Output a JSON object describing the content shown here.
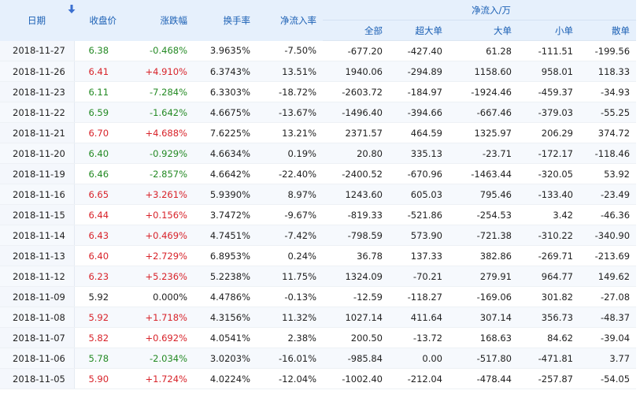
{
  "headers": {
    "date": "日期",
    "close": "收盘价",
    "change": "涨跌幅",
    "turnover": "换手率",
    "net_rate": "净流入率",
    "net_group": "净流入/万",
    "total": "全部",
    "super": "超大单",
    "large": "大单",
    "small": "小单",
    "retail": "散单"
  },
  "colors": {
    "up": "#d8232a",
    "down": "#248a24",
    "header_bg": "#e6f0fc",
    "header_text": "#1a5fb4"
  },
  "sort_icon": "arrow-down-icon",
  "rows": [
    {
      "date": "2018-11-27",
      "close": "6.38",
      "change": "-0.468%",
      "turnover": "3.9635%",
      "net_rate": "-7.50%",
      "total": "-677.20",
      "super": "-427.40",
      "large": "61.28",
      "small": "-111.51",
      "retail": "-199.56",
      "trend": "down"
    },
    {
      "date": "2018-11-26",
      "close": "6.41",
      "change": "+4.910%",
      "turnover": "6.3743%",
      "net_rate": "13.51%",
      "total": "1940.06",
      "super": "-294.89",
      "large": "1158.60",
      "small": "958.01",
      "retail": "118.33",
      "trend": "up"
    },
    {
      "date": "2018-11-23",
      "close": "6.11",
      "change": "-7.284%",
      "turnover": "6.3303%",
      "net_rate": "-18.72%",
      "total": "-2603.72",
      "super": "-184.97",
      "large": "-1924.46",
      "small": "-459.37",
      "retail": "-34.93",
      "trend": "down"
    },
    {
      "date": "2018-11-22",
      "close": "6.59",
      "change": "-1.642%",
      "turnover": "4.6675%",
      "net_rate": "-13.67%",
      "total": "-1496.40",
      "super": "-394.66",
      "large": "-667.46",
      "small": "-379.03",
      "retail": "-55.25",
      "trend": "down"
    },
    {
      "date": "2018-11-21",
      "close": "6.70",
      "change": "+4.688%",
      "turnover": "7.6225%",
      "net_rate": "13.21%",
      "total": "2371.57",
      "super": "464.59",
      "large": "1325.97",
      "small": "206.29",
      "retail": "374.72",
      "trend": "up"
    },
    {
      "date": "2018-11-20",
      "close": "6.40",
      "change": "-0.929%",
      "turnover": "4.6634%",
      "net_rate": "0.19%",
      "total": "20.80",
      "super": "335.13",
      "large": "-23.71",
      "small": "-172.17",
      "retail": "-118.46",
      "trend": "down"
    },
    {
      "date": "2018-11-19",
      "close": "6.46",
      "change": "-2.857%",
      "turnover": "4.6642%",
      "net_rate": "-22.40%",
      "total": "-2400.52",
      "super": "-670.96",
      "large": "-1463.44",
      "small": "-320.05",
      "retail": "53.92",
      "trend": "down"
    },
    {
      "date": "2018-11-16",
      "close": "6.65",
      "change": "+3.261%",
      "turnover": "5.9390%",
      "net_rate": "8.97%",
      "total": "1243.60",
      "super": "605.03",
      "large": "795.46",
      "small": "-133.40",
      "retail": "-23.49",
      "trend": "up"
    },
    {
      "date": "2018-11-15",
      "close": "6.44",
      "change": "+0.156%",
      "turnover": "3.7472%",
      "net_rate": "-9.67%",
      "total": "-819.33",
      "super": "-521.86",
      "large": "-254.53",
      "small": "3.42",
      "retail": "-46.36",
      "trend": "up"
    },
    {
      "date": "2018-11-14",
      "close": "6.43",
      "change": "+0.469%",
      "turnover": "4.7451%",
      "net_rate": "-7.42%",
      "total": "-798.59",
      "super": "573.90",
      "large": "-721.38",
      "small": "-310.22",
      "retail": "-340.90",
      "trend": "up"
    },
    {
      "date": "2018-11-13",
      "close": "6.40",
      "change": "+2.729%",
      "turnover": "6.8953%",
      "net_rate": "0.24%",
      "total": "36.78",
      "super": "137.33",
      "large": "382.86",
      "small": "-269.71",
      "retail": "-213.69",
      "trend": "up"
    },
    {
      "date": "2018-11-12",
      "close": "6.23",
      "change": "+5.236%",
      "turnover": "5.2238%",
      "net_rate": "11.75%",
      "total": "1324.09",
      "super": "-70.21",
      "large": "279.91",
      "small": "964.77",
      "retail": "149.62",
      "trend": "up"
    },
    {
      "date": "2018-11-09",
      "close": "5.92",
      "change": "0.000%",
      "turnover": "4.4786%",
      "net_rate": "-0.13%",
      "total": "-12.59",
      "super": "-118.27",
      "large": "-169.06",
      "small": "301.82",
      "retail": "-27.08",
      "trend": "flat"
    },
    {
      "date": "2018-11-08",
      "close": "5.92",
      "change": "+1.718%",
      "turnover": "4.3156%",
      "net_rate": "11.32%",
      "total": "1027.14",
      "super": "411.64",
      "large": "307.14",
      "small": "356.73",
      "retail": "-48.37",
      "trend": "up"
    },
    {
      "date": "2018-11-07",
      "close": "5.82",
      "change": "+0.692%",
      "turnover": "4.0541%",
      "net_rate": "2.38%",
      "total": "200.50",
      "super": "-13.72",
      "large": "168.63",
      "small": "84.62",
      "retail": "-39.04",
      "trend": "up"
    },
    {
      "date": "2018-11-06",
      "close": "5.78",
      "change": "-2.034%",
      "turnover": "3.0203%",
      "net_rate": "-16.01%",
      "total": "-985.84",
      "super": "0.00",
      "large": "-517.80",
      "small": "-471.81",
      "retail": "3.77",
      "trend": "down"
    },
    {
      "date": "2018-11-05",
      "close": "5.90",
      "change": "+1.724%",
      "turnover": "4.0224%",
      "net_rate": "-12.04%",
      "total": "-1002.40",
      "super": "-212.04",
      "large": "-478.44",
      "small": "-257.87",
      "retail": "-54.05",
      "trend": "up"
    }
  ]
}
